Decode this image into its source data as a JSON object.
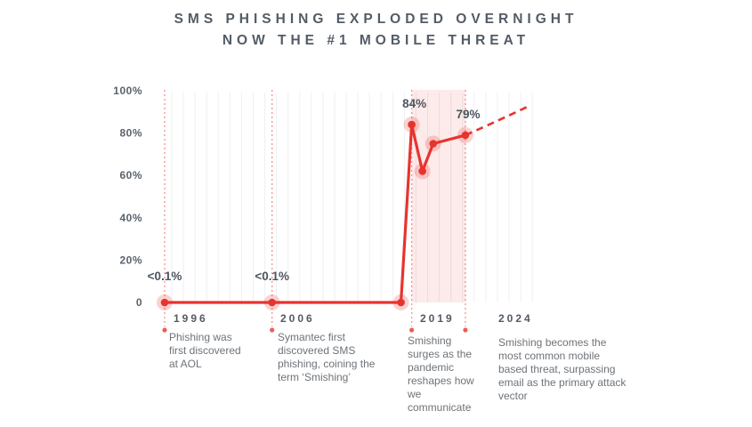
{
  "title": {
    "line1": "SMS PHISHING EXPLODED OVERNIGHT",
    "line2": "NOW THE #1 MOBILE THREAT"
  },
  "colors": {
    "accent_red": "#e6342e",
    "band_pink": "rgba(233,53,46,0.10)",
    "dotted_guide": "rgba(233,53,46,0.50)",
    "guide_dot": "rgba(233,53,46,0.80)",
    "halo": "rgba(233,53,46,0.22)",
    "grid": "#eef0f2",
    "tick_text": "#5a626d",
    "value_text": "#4d5660"
  },
  "chart_data": {
    "type": "line",
    "title": "SMS PHISHING EXPLODED OVERNIGHT — NOW THE #1 MOBILE THREAT",
    "xlabel": "",
    "ylabel": "",
    "ylim": [
      0,
      100
    ],
    "x_range_years": [
      1996,
      2030
    ],
    "grid": "vertical-faint",
    "legend": "none",
    "y_ticks": [
      {
        "value": 100,
        "label": "100%"
      },
      {
        "value": 80,
        "label": "80%"
      },
      {
        "value": 60,
        "label": "60%"
      },
      {
        "value": 40,
        "label": "40%"
      },
      {
        "value": 20,
        "label": "20%"
      },
      {
        "value": 0,
        "label": "0"
      }
    ],
    "series": [
      {
        "name": "smishing-share",
        "style": "solid",
        "points": [
          {
            "year": 1996,
            "value": 0.1,
            "label": "<0.1%"
          },
          {
            "year": 2006,
            "value": 0.1,
            "label": "<0.1%"
          },
          {
            "year": 2018,
            "value": 0.1,
            "label": ""
          },
          {
            "year": 2019,
            "value": 84,
            "label": "84%"
          },
          {
            "year": 2020,
            "value": 62,
            "label": ""
          },
          {
            "year": 2021,
            "value": 75,
            "label": ""
          },
          {
            "year": 2024,
            "value": 79,
            "label": "79%"
          }
        ]
      },
      {
        "name": "projection",
        "style": "dashed",
        "points": [
          {
            "year": 2024,
            "value": 79,
            "label": ""
          },
          {
            "year": 2030,
            "value": 93,
            "label": ""
          }
        ]
      }
    ],
    "highlight_band": {
      "from_year": 2019,
      "to_year": 2024
    },
    "event_marker_years": [
      1996,
      2006,
      2019,
      2024
    ]
  },
  "timeline": [
    {
      "year": "1996",
      "text": "Phishing was first discovered at AOL"
    },
    {
      "year": "2006",
      "text": "Symantec first discovered SMS phishing, coining the term ‘Smishing’"
    },
    {
      "year": "2019",
      "text": "Smishing surges as the pandemic reshapes how we communicate"
    },
    {
      "year": "2024",
      "text": "Smishing becomes the most common mobile based threat, surpassing email as the primary attack vector"
    }
  ]
}
